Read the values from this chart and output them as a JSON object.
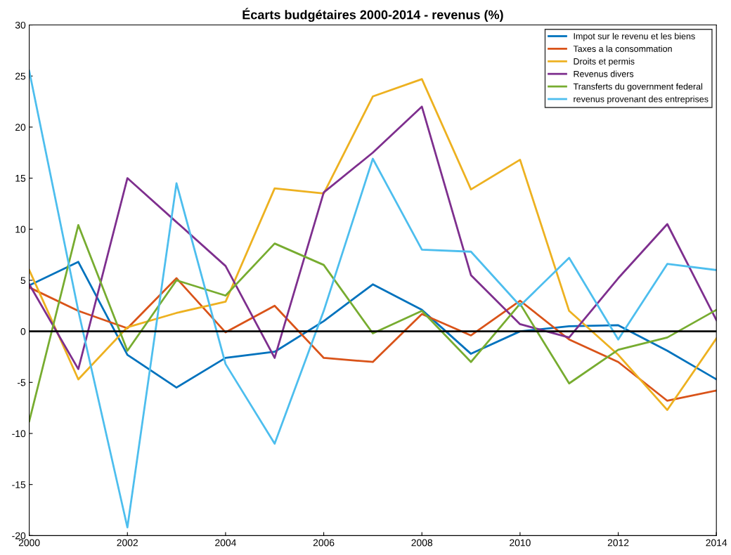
{
  "chart_data": {
    "type": "line",
    "title": "Écarts budgétaires 2000-2014 - revenus (%)",
    "x": [
      2000,
      2001,
      2002,
      2003,
      2004,
      2005,
      2006,
      2007,
      2008,
      2009,
      2010,
      2011,
      2012,
      2013,
      2014
    ],
    "series": [
      {
        "name": "Impot sur le revenu et les biens",
        "color": "#0072bd",
        "values": [
          4.5,
          6.8,
          -2.3,
          -5.5,
          -2.6,
          -2.0,
          1.0,
          4.6,
          2.1,
          -2.2,
          0.0,
          0.5,
          0.6,
          -1.9,
          -4.7
        ]
      },
      {
        "name": "Taxes a la consommation",
        "color": "#d95319",
        "values": [
          4.3,
          2.0,
          0.3,
          5.2,
          -0.1,
          2.5,
          -2.6,
          -3.0,
          1.7,
          -0.4,
          3.0,
          -0.8,
          -3.0,
          -6.8,
          -5.8
        ]
      },
      {
        "name": "Droits et permis",
        "color": "#edb120",
        "values": [
          6.0,
          -4.7,
          0.4,
          1.8,
          2.9,
          14.0,
          13.5,
          23.0,
          24.7,
          13.9,
          16.8,
          2.0,
          -2.3,
          -7.7,
          -0.7
        ]
      },
      {
        "name": "Revenus divers",
        "color": "#7e2f8e",
        "values": [
          4.6,
          -3.7,
          15.0,
          10.7,
          6.4,
          -2.6,
          13.6,
          17.5,
          22.0,
          5.5,
          0.7,
          -0.6,
          5.2,
          10.5,
          1.1
        ]
      },
      {
        "name": "Transferts du government federal",
        "color": "#77ac30",
        "values": [
          -8.8,
          10.4,
          -1.9,
          5.0,
          3.5,
          8.6,
          6.5,
          -0.2,
          2.0,
          -3.0,
          2.7,
          -5.1,
          -1.8,
          -0.6,
          2.1
        ]
      },
      {
        "name": "revenus provenant des entreprises",
        "color": "#4dbeee",
        "values": [
          25.5,
          2.0,
          -19.2,
          14.5,
          -3.2,
          -11.0,
          2.0,
          16.9,
          8.0,
          7.8,
          2.5,
          7.2,
          -0.8,
          6.6,
          6.0
        ]
      }
    ],
    "xlim": [
      2000,
      2014
    ],
    "xticks": [
      2000,
      2002,
      2004,
      2006,
      2008,
      2010,
      2012,
      2014
    ],
    "ylim": [
      -20,
      30
    ],
    "yticks": [
      -20,
      -15,
      -10,
      -5,
      0,
      5,
      10,
      15,
      20,
      25,
      30
    ],
    "ref_lines": [
      {
        "axis": "y",
        "value": 0,
        "color": "#000000"
      }
    ],
    "grid": false,
    "legend": "top right"
  }
}
